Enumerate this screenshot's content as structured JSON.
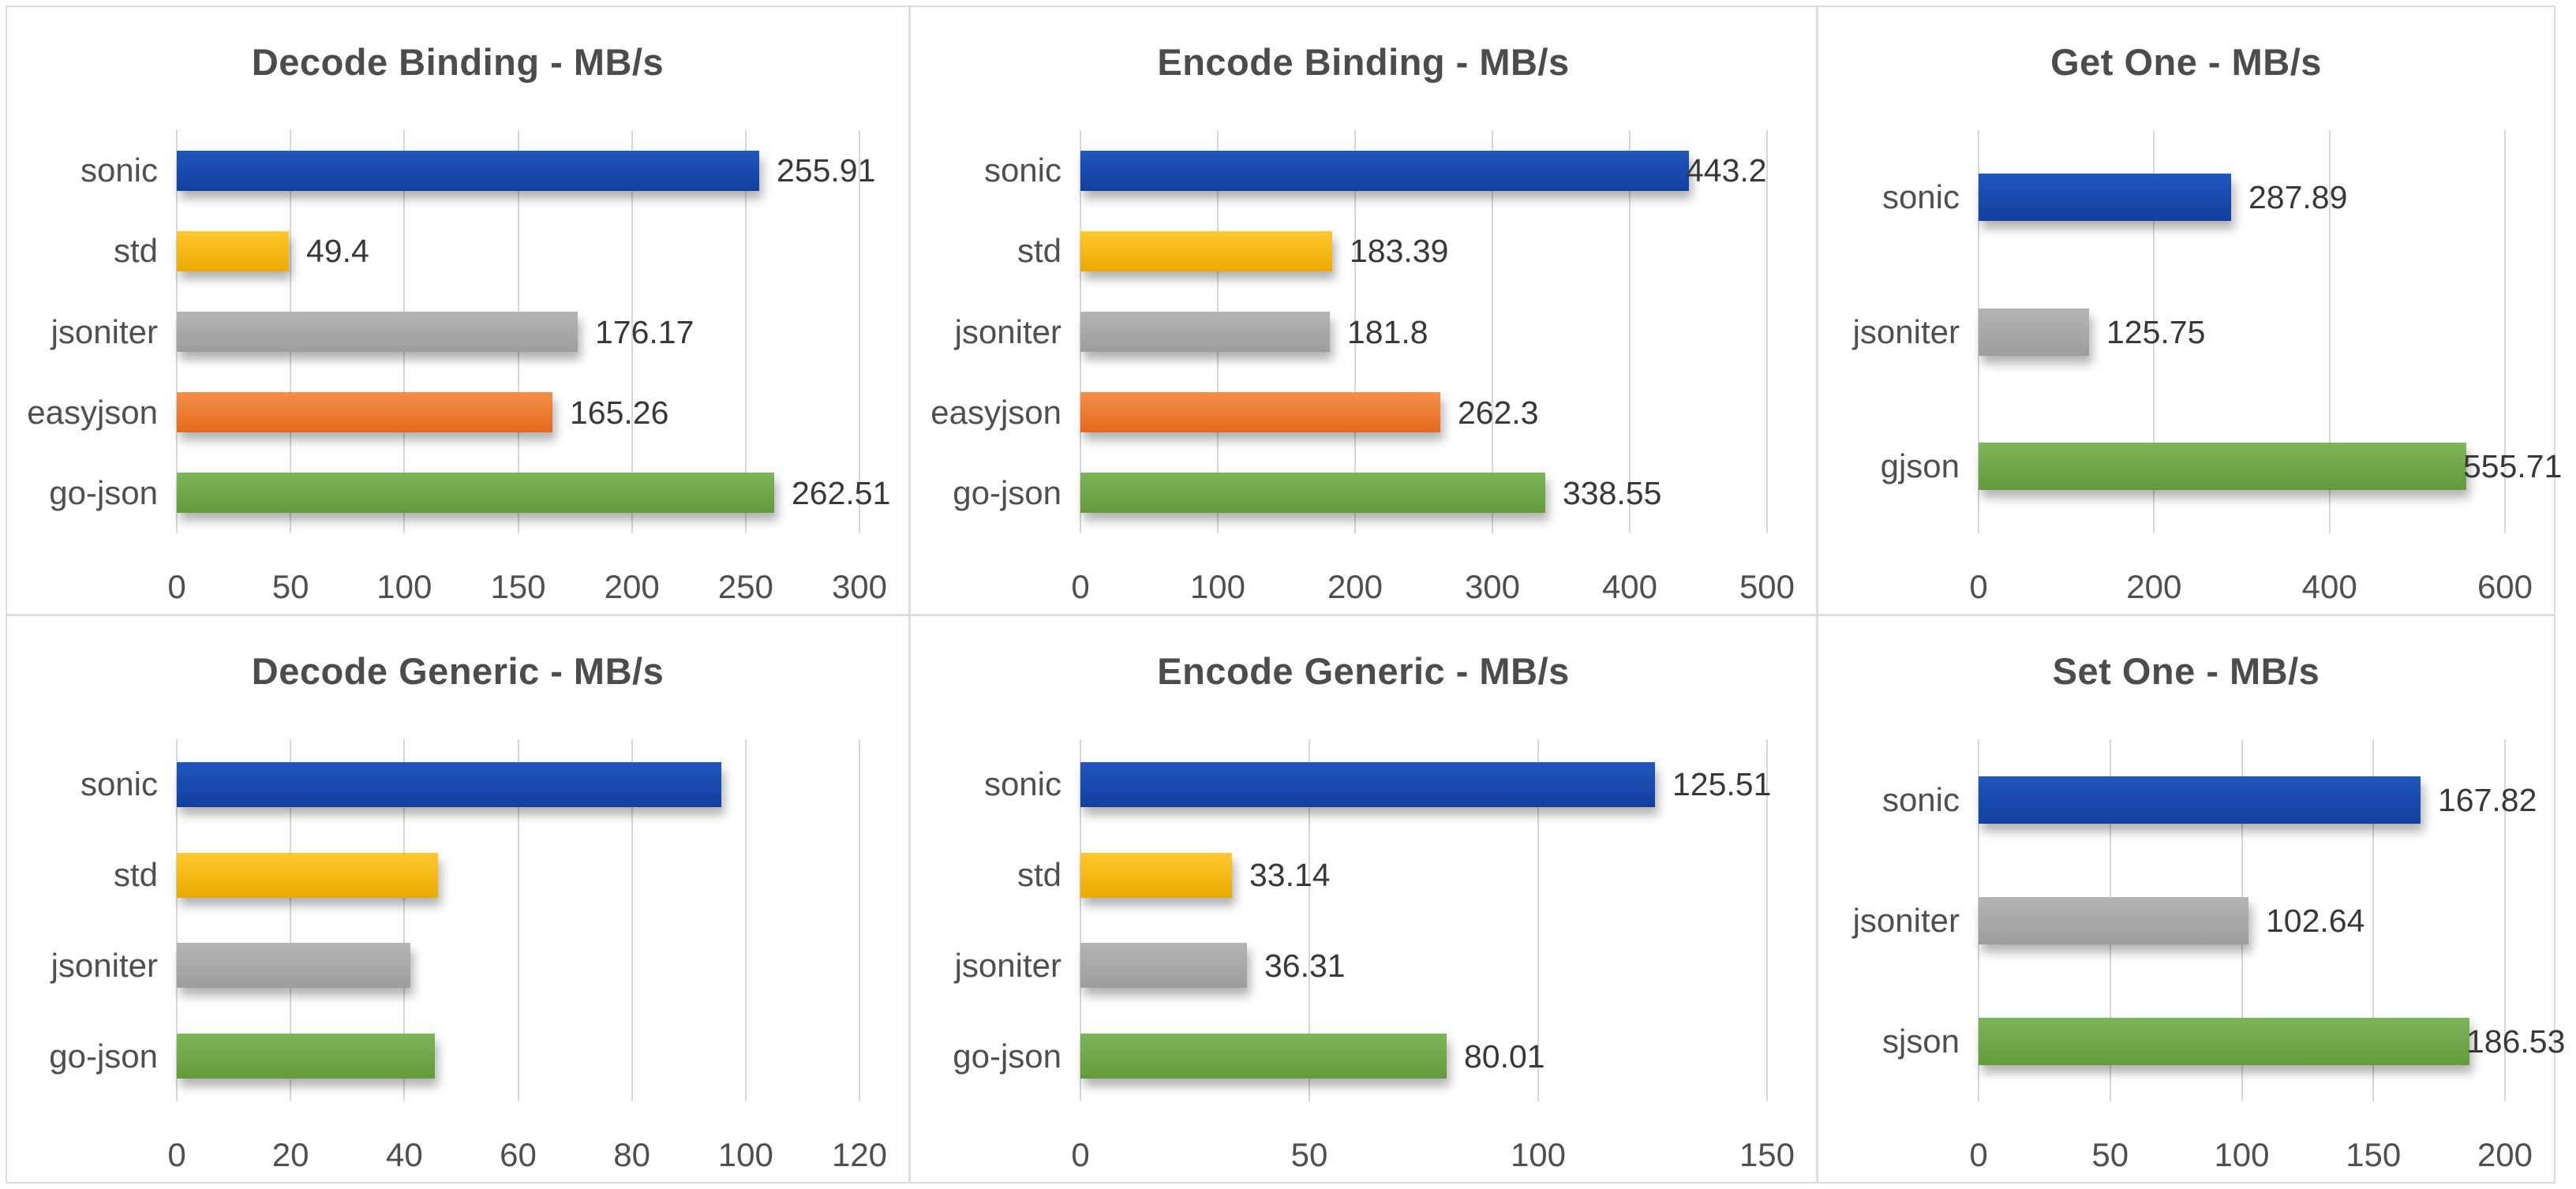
{
  "dashboard": {
    "background": "#ffffff",
    "frame_color": "#dcdcdc",
    "gridline_color": "#d6d6d6",
    "title_color": "#4c4c4c",
    "category_color": "#4f4f4f",
    "tick_color": "#4f4f4f",
    "value_label_color": "#383838",
    "units": "MB/s"
  },
  "palette": {
    "blue": {
      "base": "#1a4fae",
      "top": "#2156bd",
      "bottom": "#11409f"
    },
    "yellow": {
      "base": "#ffc000",
      "top": "#ffc82e",
      "bottom": "#eaaa00"
    },
    "gray": {
      "base": "#a9a9a9",
      "top": "#b4b4b4",
      "bottom": "#9d9d9d"
    },
    "orange": {
      "base": "#ed7d31",
      "top": "#f4904a",
      "bottom": "#e3691d"
    },
    "green": {
      "base": "#70ad47",
      "top": "#7db55a",
      "bottom": "#639a3c"
    }
  },
  "chart_data": [
    {
      "type": "bar",
      "orientation": "horizontal",
      "title": "Decode Binding - MB/s",
      "categories": [
        "sonic",
        "std",
        "jsoniter",
        "easyjson",
        "go-json"
      ],
      "values": [
        255.91,
        49.4,
        176.17,
        165.26,
        262.51
      ],
      "value_labels": [
        "255.91",
        "49.4",
        "176.17",
        "165.26",
        "262.51"
      ],
      "data_labels": true,
      "bar_colors": [
        "blue",
        "yellow",
        "gray",
        "orange",
        "green"
      ],
      "xmax": 300,
      "xticks": [
        "0",
        "50",
        "100",
        "150",
        "200",
        "250",
        "300"
      ],
      "grid": true
    },
    {
      "type": "bar",
      "orientation": "horizontal",
      "title": "Encode Binding - MB/s",
      "categories": [
        "sonic",
        "std",
        "jsoniter",
        "easyjson",
        "go-json"
      ],
      "values": [
        443.2,
        183.39,
        181.8,
        262.3,
        338.55
      ],
      "value_labels": [
        "443.2",
        "183.39",
        "181.8",
        "262.3",
        "338.55"
      ],
      "data_labels": true,
      "bar_colors": [
        "blue",
        "yellow",
        "gray",
        "orange",
        "green"
      ],
      "xmax": 500,
      "xticks": [
        "0",
        "100",
        "200",
        "300",
        "400",
        "500"
      ],
      "grid": true
    },
    {
      "type": "bar",
      "orientation": "horizontal",
      "title": "Get One - MB/s",
      "categories": [
        "sonic",
        "jsoniter",
        "gjson"
      ],
      "values": [
        287.89,
        125.75,
        555.71
      ],
      "value_labels": [
        "287.89",
        "125.75",
        "555.71"
      ],
      "data_labels": true,
      "bar_colors": [
        "blue",
        "gray",
        "green"
      ],
      "xmax": 600,
      "xticks": [
        "0",
        "200",
        "400",
        "600"
      ],
      "grid": true
    },
    {
      "type": "bar",
      "orientation": "horizontal",
      "title": "Decode Generic - MB/s",
      "categories": [
        "sonic",
        "std",
        "jsoniter",
        "go-json"
      ],
      "values": [
        95.7,
        45.9,
        41.0,
        45.3
      ],
      "value_labels": [
        "",
        "",
        "",
        ""
      ],
      "data_labels": false,
      "bar_colors": [
        "blue",
        "yellow",
        "gray",
        "green"
      ],
      "xmax": 120,
      "xticks": [
        "0",
        "20",
        "40",
        "60",
        "80",
        "100",
        "120"
      ],
      "grid": true
    },
    {
      "type": "bar",
      "orientation": "horizontal",
      "title": "Encode Generic - MB/s",
      "categories": [
        "sonic",
        "std",
        "jsoniter",
        "go-json"
      ],
      "values": [
        125.51,
        33.14,
        36.31,
        80.01
      ],
      "value_labels": [
        "125.51",
        "33.14",
        "36.31",
        "80.01"
      ],
      "data_labels": true,
      "bar_colors": [
        "blue",
        "yellow",
        "gray",
        "green"
      ],
      "xmax": 150,
      "xticks": [
        "0",
        "50",
        "100",
        "150"
      ],
      "grid": true
    },
    {
      "type": "bar",
      "orientation": "horizontal",
      "title": "Set One - MB/s",
      "categories": [
        "sonic",
        "jsoniter",
        "sjson"
      ],
      "values": [
        167.82,
        102.64,
        186.53
      ],
      "value_labels": [
        "167.82",
        "102.64",
        "186.53"
      ],
      "data_labels": true,
      "bar_colors": [
        "blue",
        "gray",
        "green"
      ],
      "xmax": 200,
      "xticks": [
        "0",
        "50",
        "100",
        "150",
        "200"
      ],
      "grid": true
    }
  ]
}
